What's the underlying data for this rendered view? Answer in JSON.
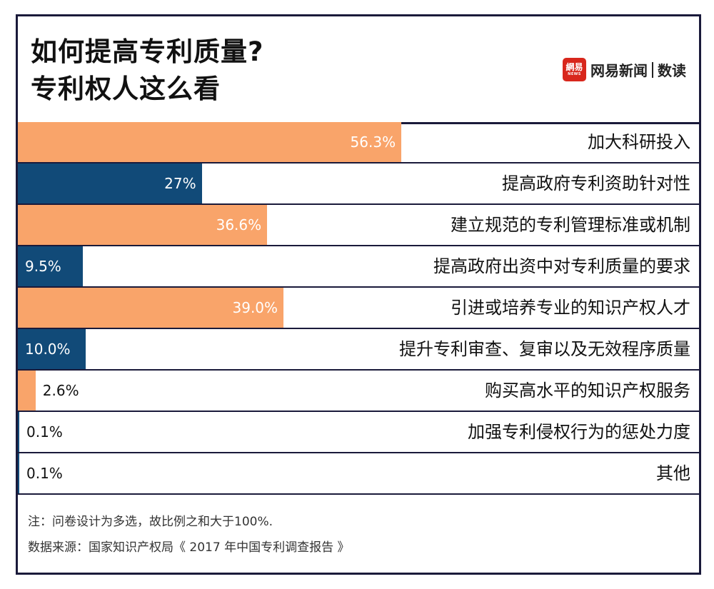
{
  "title_lines": [
    "如何提高专利质量?",
    "专利权人这么看"
  ],
  "brand": {
    "logo_text": "網易",
    "logo_sub": "NEWS",
    "name": "网易新闻",
    "sub": "数读"
  },
  "colors": {
    "orange": "#f9a46a",
    "navy": "#114a78",
    "border": "#1a1a3a"
  },
  "chart_data": {
    "type": "bar",
    "orientation": "horizontal",
    "categories": [
      "加大科研投入",
      "提高政府专利资助针对性",
      "建立规范的专利管理标准或机制",
      "提高政府出资中对专利质量的要求",
      "引进或培养专业的知识产权人才",
      "提升专利审查、复审以及无效程序质量",
      "购买高水平的知识产权服务",
      "加强专利侵权行为的惩处力度",
      "其他"
    ],
    "values": [
      56.3,
      27,
      36.6,
      9.5,
      39.0,
      10.0,
      2.6,
      0.1,
      0.1
    ],
    "labels": [
      "56.3%",
      "27%",
      "36.6%",
      "9.5%",
      "39.0%",
      "10.0%",
      "2.6%",
      "0.1%",
      "0.1%"
    ],
    "bar_colors": [
      "orange",
      "navy",
      "orange",
      "navy",
      "orange",
      "navy",
      "orange",
      "navy",
      "navy"
    ],
    "xlim": [
      0,
      100
    ]
  },
  "footer": {
    "note": "注：问卷设计为多选，故比例之和大于100%.",
    "source": "数据来源：国家知识产权局《 2017 年中国专利调查报告 》"
  }
}
